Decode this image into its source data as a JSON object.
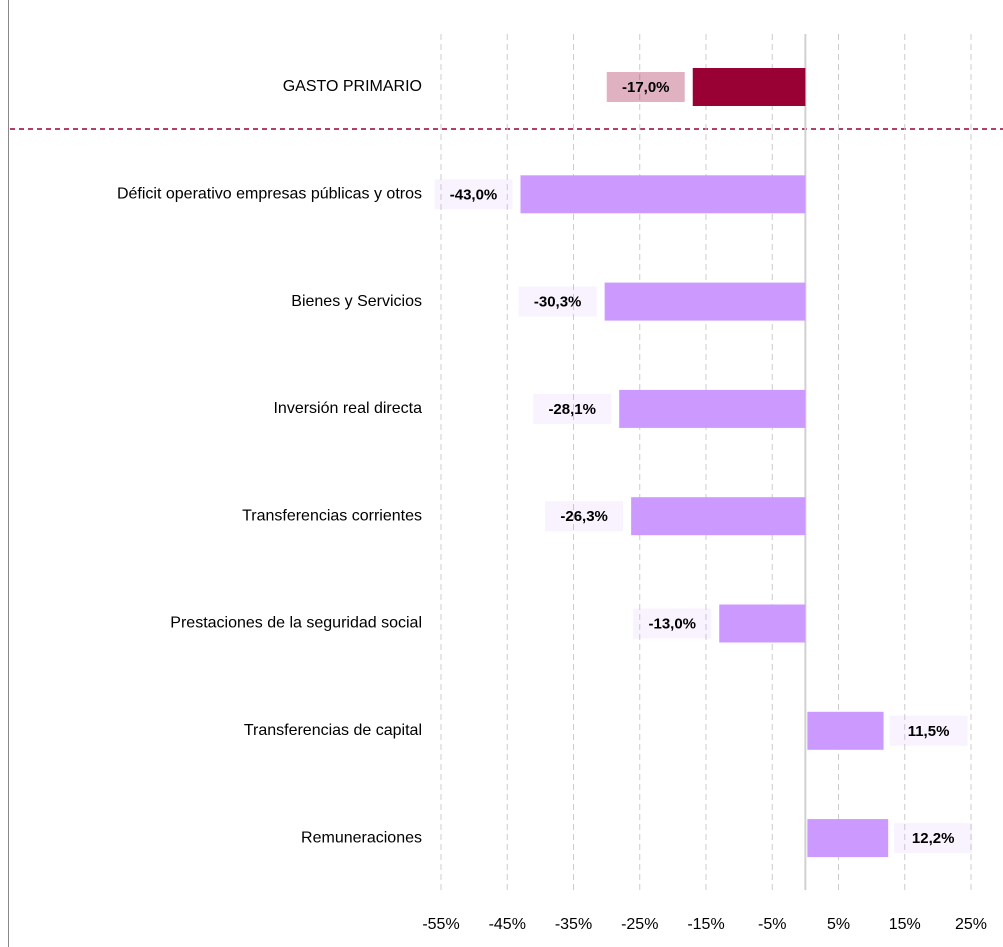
{
  "chart_data": {
    "type": "barh",
    "categories": [
      "GASTO PRIMARIO",
      "Déficit operativo empresas públicas y otros",
      "Bienes y Servicios",
      "Inversión real directa",
      "Transferencias corrientes",
      "Prestaciones de la seguridad social",
      "Transferencias de capital",
      "Remuneraciones"
    ],
    "values": [
      -17.0,
      -43.0,
      -30.3,
      -28.1,
      -26.3,
      -13.0,
      11.5,
      12.2
    ],
    "value_labels": [
      "-17,0%",
      "-43,0%",
      "-30,3%",
      "-28,1%",
      "-26,3%",
      "-13,0%",
      "11,5%",
      "12,2%"
    ],
    "colors": [
      "#990033",
      "#cc99ff",
      "#cc99ff",
      "#cc99ff",
      "#cc99ff",
      "#cc99ff",
      "#cc99ff",
      "#cc99ff"
    ],
    "xlim": [
      -55,
      25
    ],
    "xticks": [
      {
        "value": -55,
        "label": "-55%"
      },
      {
        "value": -45,
        "label": "-45%"
      },
      {
        "value": -35,
        "label": "-35%"
      },
      {
        "value": -25,
        "label": "-25%"
      },
      {
        "value": -15,
        "label": "-15%"
      },
      {
        "value": -5,
        "label": "-5%"
      },
      {
        "value": 5,
        "label": "5%"
      },
      {
        "value": 15,
        "label": "15%"
      },
      {
        "value": 25,
        "label": "25%"
      }
    ],
    "grid": true
  }
}
